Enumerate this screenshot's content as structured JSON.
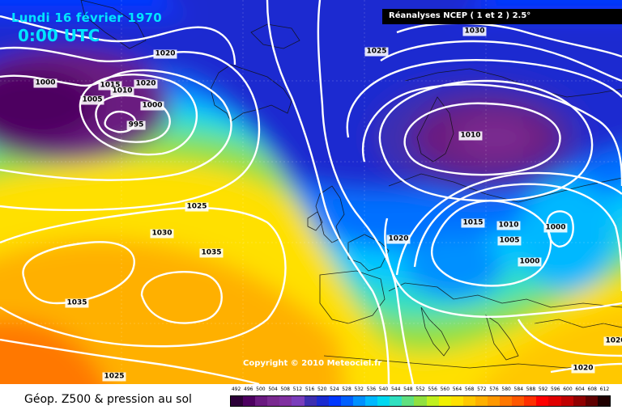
{
  "header": {
    "date": "Lundi 16 février 1970",
    "time": "0:00 UTC",
    "source": "Réanalyses NCEP ( 1 et 2 ) 2.5°"
  },
  "copyright": "Copyright © 2010 Meteociel.fr",
  "isobar_labels": [
    "1030",
    "1020",
    "1025",
    "1000",
    "1015",
    "1020",
    "1005",
    "1010",
    "1000",
    "995",
    "1010",
    "1025",
    "1030",
    "1035",
    "1015",
    "1010",
    "1020",
    "1005",
    "1000",
    "1000",
    "1035",
    "1025",
    "1020",
    "1020"
  ],
  "legend": {
    "title": "Géop. Z500 & pression au sol",
    "scale_values": [
      "492",
      "496",
      "500",
      "504",
      "508",
      "512",
      "516",
      "520",
      "524",
      "528",
      "532",
      "536",
      "540",
      "544",
      "548",
      "552",
      "556",
      "560",
      "564",
      "568",
      "572",
      "576",
      "580",
      "584",
      "588",
      "592",
      "596",
      "600",
      "604",
      "608",
      "612"
    ],
    "scale_colors": [
      "#2c0038",
      "#4d0060",
      "#6a1a80",
      "#7a2a90",
      "#8030a0",
      "#7a3dbb",
      "#3d2eb0",
      "#1a2ad0",
      "#0038ff",
      "#0060ff",
      "#0090ff",
      "#00b8ff",
      "#00d8f0",
      "#30e0c0",
      "#60e080",
      "#90e040",
      "#c0f020",
      "#f0f000",
      "#ffe000",
      "#ffc800",
      "#ffb000",
      "#ff9800",
      "#ff7800",
      "#ff5800",
      "#ff3000",
      "#ff0000",
      "#e00000",
      "#c00000",
      "#900000",
      "#600000",
      "#200000"
    ]
  }
}
